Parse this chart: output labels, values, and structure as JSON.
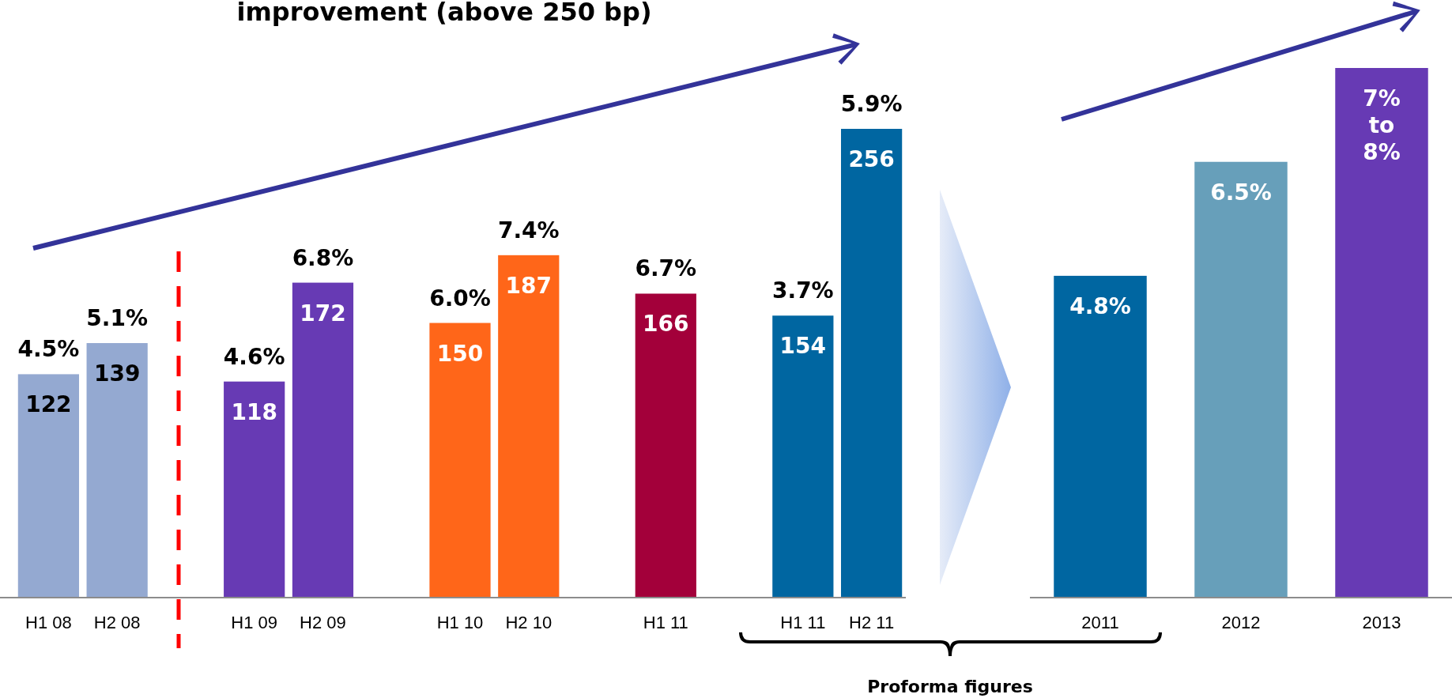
{
  "chart_data": [
    {
      "type": "bar",
      "title": "improvement (above 250 bp)",
      "categories": [
        "H1 08",
        "H2 08",
        null,
        "H1 09",
        "H2 09",
        null,
        "H1 10",
        "H2 10",
        null,
        "H1 11",
        null,
        "H1 11",
        "H2 11"
      ],
      "values": [
        122,
        139,
        null,
        118,
        172,
        null,
        150,
        187,
        null,
        166,
        null,
        154,
        256
      ],
      "colors": [
        "#94a9d1",
        "#94a9d1",
        null,
        "#673ab4",
        "#673ab4",
        null,
        "#ff6619",
        "#ff6619",
        null,
        "#a3003a",
        null,
        "#0066a1",
        "#0066a1"
      ],
      "data_labels": true,
      "annotations": [
        "4.5%",
        "5.1%",
        "4.6%",
        "6.8%",
        "6.0%",
        "7.4%",
        "6.7%",
        "3.7%",
        "5.9%",
        "Proforma figures"
      ]
    },
    {
      "type": "bar",
      "categories": [
        "2011",
        "2012",
        "2013"
      ],
      "values": [
        4.8,
        6.5,
        7.9
      ],
      "colors": [
        "#0066a1",
        "#679fba",
        "#673ab4"
      ],
      "value_labels": [
        "4.8%",
        "6.5%",
        "7% to 8%"
      ]
    }
  ]
}
